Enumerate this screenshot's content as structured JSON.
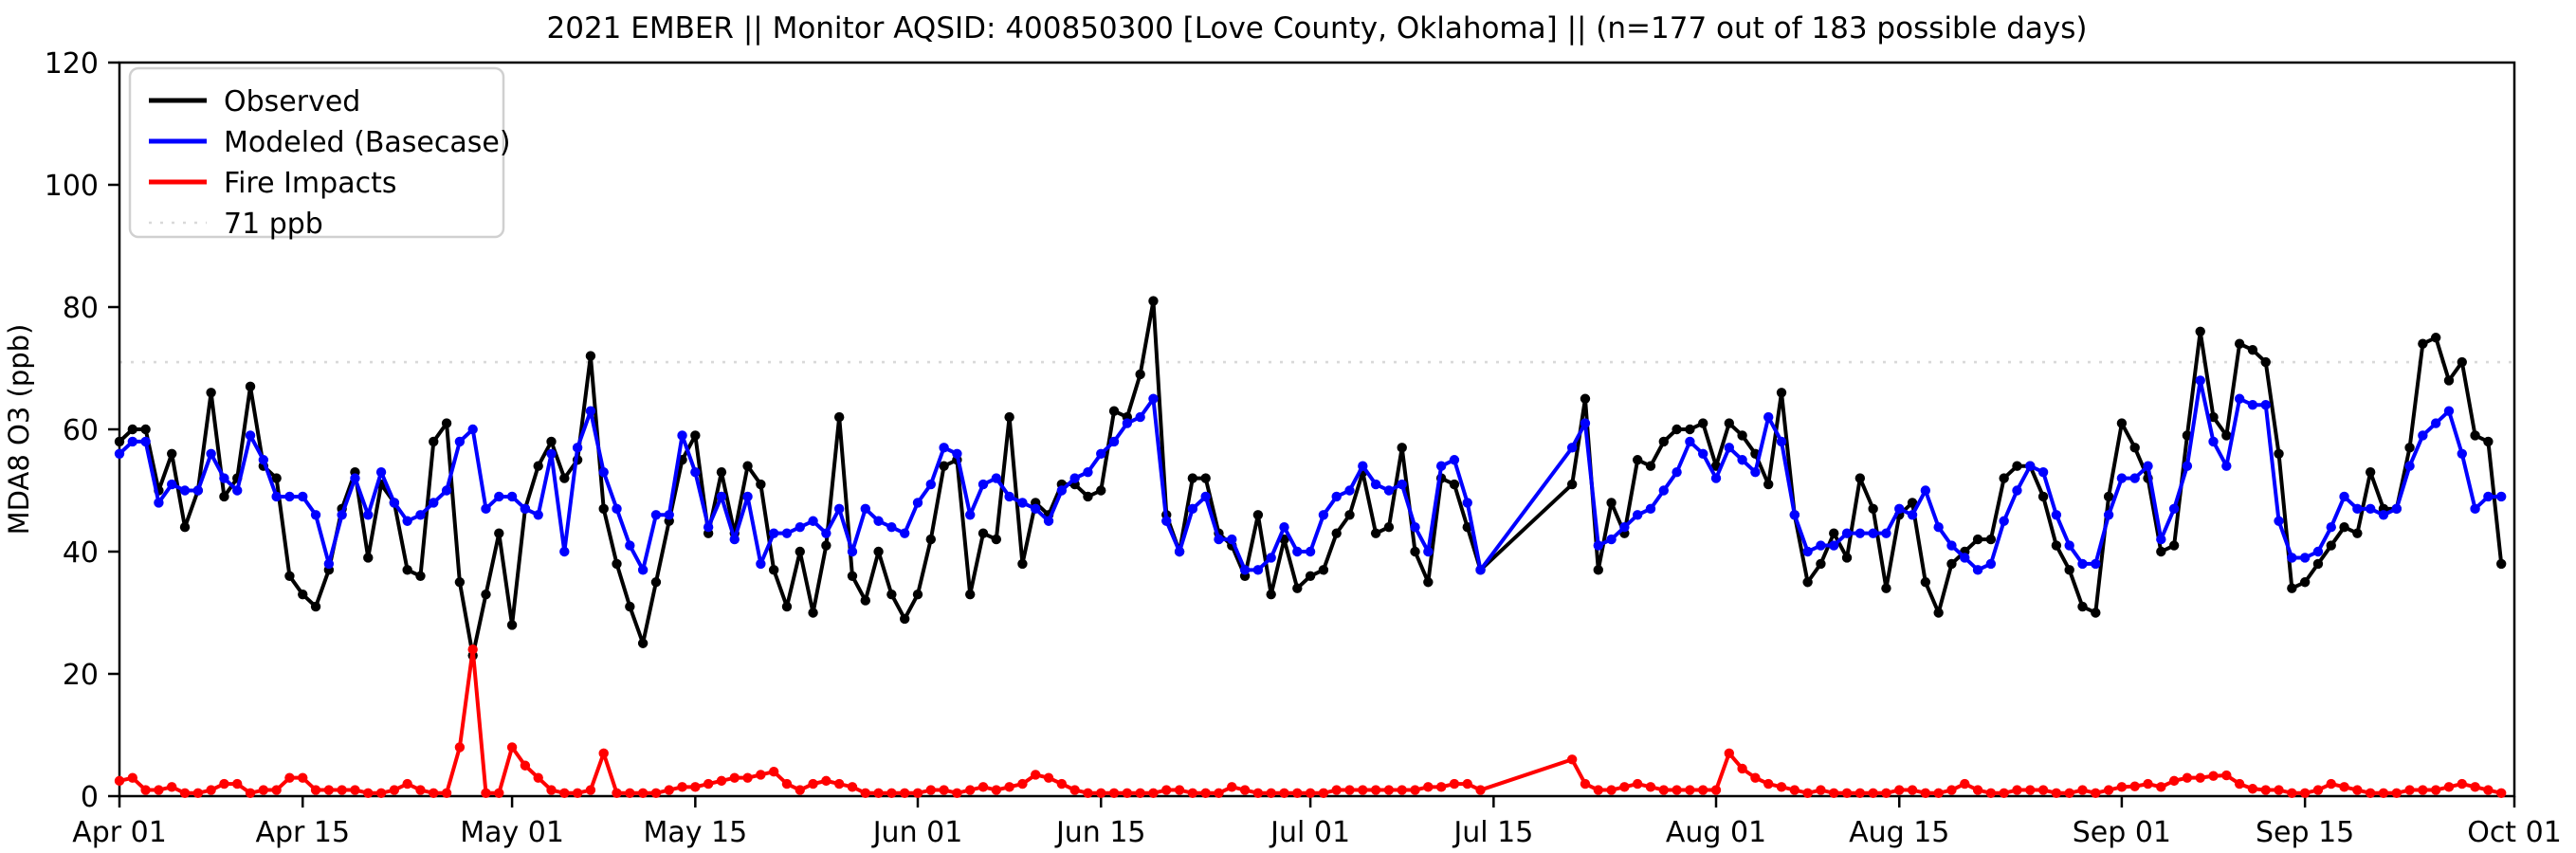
{
  "title": "2021 EMBER || Monitor AQSID: 400850300 [Love County, Oklahoma] || (n=177 out of 183 possible days)",
  "legend": {
    "entries": [
      {
        "label": "Observed",
        "color": "#000000",
        "style": "solid"
      },
      {
        "label": "Modeled (Basecase)",
        "color": "#0000ff",
        "style": "solid"
      },
      {
        "label": "Fire Impacts",
        "color": "#ff0000",
        "style": "solid"
      },
      {
        "label": "71 ppb",
        "color": "#d9d9d9",
        "style": "dotted"
      }
    ]
  },
  "chart_data": {
    "type": "line",
    "title": "2021 EMBER || Monitor AQSID: 400850300 [Love County, Oklahoma] || (n=177 out of 183 possible days)",
    "ylabel": "MDA8 O3 (ppb)",
    "xlabel": "",
    "ylim": [
      0,
      120
    ],
    "xlim_days": [
      0,
      183
    ],
    "start_date": "2021-04-01",
    "end_date": "2021-09-30",
    "n_observed_days": 177,
    "n_possible_days": 183,
    "missing_dates": [
      "2021-07-15",
      "2021-07-16",
      "2021-07-17",
      "2021-07-18",
      "2021-07-19",
      "2021-07-20"
    ],
    "grid": false,
    "legend_position": "upper-left",
    "ref_line": {
      "label": "71 ppb",
      "value": 71,
      "color": "#d9d9d9",
      "style": "dotted"
    },
    "yticks": [
      0,
      20,
      40,
      60,
      80,
      100,
      120
    ],
    "xticks": [
      {
        "label": "Apr 01",
        "day": 0
      },
      {
        "label": "Apr 15",
        "day": 14
      },
      {
        "label": "May 01",
        "day": 30
      },
      {
        "label": "May 15",
        "day": 44
      },
      {
        "label": "Jun 01",
        "day": 61
      },
      {
        "label": "Jun 15",
        "day": 75
      },
      {
        "label": "Jul 01",
        "day": 91
      },
      {
        "label": "Jul 15",
        "day": 105
      },
      {
        "label": "Aug 01",
        "day": 122
      },
      {
        "label": "Aug 15",
        "day": 136
      },
      {
        "label": "Sep 01",
        "day": 153
      },
      {
        "label": "Sep 15",
        "day": 167
      },
      {
        "label": "Oct 01",
        "day": 183
      }
    ],
    "series": [
      {
        "name": "Observed",
        "color": "#000000",
        "marker": "circle",
        "values": [
          58,
          60,
          60,
          50,
          56,
          44,
          50,
          66,
          49,
          52,
          67,
          54,
          52,
          36,
          33,
          31,
          37,
          47,
          53,
          39,
          51,
          48,
          37,
          36,
          58,
          61,
          35,
          23,
          33,
          43,
          28,
          47,
          54,
          58,
          52,
          55,
          72,
          47,
          38,
          31,
          25,
          35,
          45,
          55,
          59,
          43,
          53,
          43,
          54,
          51,
          37,
          31,
          40,
          30,
          41,
          62,
          36,
          32,
          40,
          33,
          29,
          33,
          42,
          54,
          55,
          33,
          43,
          42,
          62,
          38,
          48,
          46,
          51,
          51,
          49,
          50,
          63,
          62,
          69,
          81,
          46,
          40,
          52,
          52,
          43,
          41,
          36,
          46,
          33,
          42,
          34,
          36,
          37,
          43,
          46,
          53,
          43,
          44,
          57,
          40,
          35,
          52,
          51,
          44,
          37,
          null,
          null,
          null,
          null,
          null,
          null,
          51,
          65,
          37,
          48,
          43,
          55,
          54,
          58,
          60,
          60,
          61,
          54,
          61,
          59,
          56,
          51,
          66,
          46,
          35,
          38,
          43,
          39,
          52,
          47,
          34,
          46,
          48,
          35,
          30,
          38,
          40,
          42,
          42,
          52,
          54,
          54,
          49,
          41,
          37,
          31,
          30,
          49,
          61,
          57,
          52,
          40,
          41,
          59,
          76,
          62,
          59,
          74,
          73,
          71,
          56,
          34,
          35,
          38,
          41,
          44,
          43,
          53,
          47,
          47,
          57,
          74,
          75,
          68,
          71,
          59,
          58,
          38
        ]
      },
      {
        "name": "Modeled (Basecase)",
        "color": "#0000ff",
        "marker": "circle",
        "values": [
          56,
          58,
          58,
          48,
          51,
          50,
          50,
          56,
          52,
          50,
          59,
          55,
          49,
          49,
          49,
          46,
          38,
          46,
          52,
          46,
          53,
          48,
          45,
          46,
          48,
          50,
          58,
          60,
          47,
          49,
          49,
          47,
          46,
          56,
          40,
          57,
          63,
          53,
          47,
          41,
          37,
          46,
          46,
          59,
          53,
          44,
          49,
          42,
          49,
          38,
          43,
          43,
          44,
          45,
          43,
          47,
          40,
          47,
          45,
          44,
          43,
          48,
          51,
          57,
          56,
          46,
          51,
          52,
          49,
          48,
          47,
          45,
          50,
          52,
          53,
          56,
          58,
          61,
          62,
          65,
          45,
          40,
          47,
          49,
          42,
          42,
          37,
          37,
          39,
          44,
          40,
          40,
          46,
          49,
          50,
          54,
          51,
          50,
          51,
          44,
          40,
          54,
          55,
          48,
          37,
          null,
          null,
          null,
          null,
          null,
          null,
          57,
          61,
          41,
          42,
          44,
          46,
          47,
          50,
          53,
          58,
          56,
          52,
          57,
          55,
          53,
          62,
          58,
          46,
          40,
          41,
          41,
          43,
          43,
          43,
          43,
          47,
          46,
          50,
          44,
          41,
          39,
          37,
          38,
          45,
          50,
          54,
          53,
          46,
          41,
          38,
          38,
          46,
          52,
          52,
          54,
          42,
          47,
          54,
          68,
          58,
          54,
          65,
          64,
          64,
          45,
          39,
          39,
          40,
          44,
          49,
          47,
          47,
          46,
          47,
          54,
          59,
          61,
          63,
          56,
          47,
          49,
          49
        ]
      },
      {
        "name": "Fire Impacts",
        "color": "#ff0000",
        "marker": "circle",
        "values": [
          2.5,
          3,
          1,
          1,
          1.5,
          0.5,
          0.5,
          1,
          2,
          2,
          0.5,
          1,
          1,
          3,
          3,
          1,
          1,
          1,
          1,
          0.5,
          0.5,
          1,
          2,
          1,
          0.5,
          0.5,
          8,
          24,
          0.5,
          0.5,
          8,
          5,
          3,
          1,
          0.5,
          0.5,
          1,
          7,
          0.5,
          0.5,
          0.5,
          0.5,
          1,
          1.5,
          1.5,
          2,
          2.5,
          3,
          3,
          3.5,
          4,
          2,
          1,
          2,
          2.5,
          2,
          1.5,
          0.5,
          0.5,
          0.5,
          0.5,
          0.5,
          1,
          1,
          0.5,
          1,
          1.5,
          1,
          1.5,
          2,
          3.5,
          3,
          2,
          1,
          0.5,
          0.5,
          0.5,
          0.5,
          0.5,
          0.5,
          1,
          1,
          0.5,
          0.5,
          0.5,
          1.5,
          1,
          0.5,
          0.5,
          0.5,
          0.5,
          0.5,
          0.5,
          1,
          1,
          1,
          1,
          1,
          1,
          1,
          1.5,
          1.5,
          2,
          2,
          1,
          null,
          null,
          null,
          null,
          null,
          null,
          6,
          2,
          1,
          1,
          1.5,
          2,
          1.5,
          1,
          1,
          1,
          1,
          1,
          7,
          4.5,
          3,
          2,
          1.5,
          1,
          0.5,
          1,
          0.5,
          0.5,
          0.5,
          0.5,
          0.5,
          1,
          1,
          0.5,
          0.5,
          1,
          2,
          1,
          0.5,
          0.5,
          1,
          1,
          1,
          0.5,
          0.5,
          1,
          0.5,
          1,
          1.5,
          1.6,
          2,
          1.5,
          2.5,
          3,
          3,
          3.3,
          3.4,
          2,
          1.2,
          1,
          1,
          0.5,
          0.5,
          1,
          2,
          1.5,
          1,
          0.5,
          0.5,
          0.5,
          1,
          1,
          1,
          1.5,
          2,
          1.5,
          1,
          0.5
        ]
      }
    ]
  }
}
